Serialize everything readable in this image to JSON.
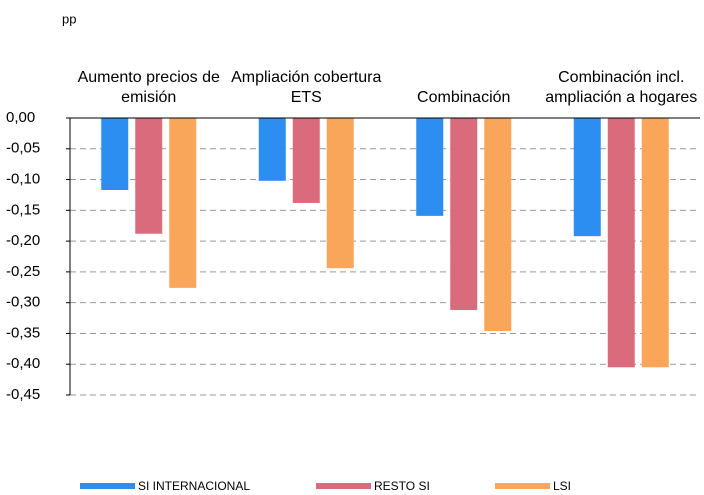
{
  "chart_data": {
    "type": "bar",
    "unit_label": "pp",
    "categories": [
      "Aumento precios de emisión",
      "Ampliación cobertura ETS",
      "Combinación",
      "Combinación incl. ampliación a hogares"
    ],
    "series": [
      {
        "name": "SI INTERNACIONAL",
        "color": "#2b8ef0",
        "values": [
          -0.117,
          -0.102,
          -0.159,
          -0.192
        ]
      },
      {
        "name": "RESTO SI",
        "color": "#d96b7c",
        "values": [
          -0.188,
          -0.138,
          -0.312,
          -0.405
        ]
      },
      {
        "name": "LSI",
        "color": "#f9a65a",
        "values": [
          -0.276,
          -0.244,
          -0.346,
          -0.405
        ]
      }
    ],
    "ylim": [
      -0.45,
      0
    ],
    "yticks": [
      {
        "value": 0,
        "label": "0,00"
      },
      {
        "value": -0.05,
        "label": "-0,05"
      },
      {
        "value": -0.1,
        "label": "-0,10"
      },
      {
        "value": -0.15,
        "label": "-0,15"
      },
      {
        "value": -0.2,
        "label": "-0,20"
      },
      {
        "value": -0.25,
        "label": "-0,25"
      },
      {
        "value": -0.3,
        "label": "-0,30"
      },
      {
        "value": -0.35,
        "label": "-0,35"
      },
      {
        "value": -0.4,
        "label": "-0,40"
      },
      {
        "value": -0.45,
        "label": "-0,45"
      }
    ],
    "grid": true
  }
}
